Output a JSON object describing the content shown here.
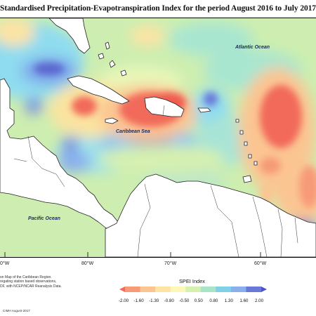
{
  "title": "Standardised Precipitation-Evapotranspiration Index for the period August 2016 to July 2017",
  "map_labels": {
    "atlantic": "Atlantic Ocean",
    "caribbean": "Caribbean Sea",
    "pacific": "Pacific Ocean"
  },
  "longitudes": [
    "0°W",
    "80°W",
    "70°W",
    "60°W"
  ],
  "credits": [
    "on Map of the Caribbean Region.",
    "regating station based observations,",
    "DF, with NCEP/NCAR Reanalysis Data."
  ],
  "copyright": "CIMH August-2017",
  "legend": {
    "title": "SPEI Index",
    "ticks": [
      "-2.00",
      "-1.60",
      "-1.30",
      "-0.80",
      "-0.50",
      "0.50",
      "0.80",
      "1.30",
      "1.60",
      "2.00"
    ],
    "colors": [
      "#f26a5a",
      "#f79a77",
      "#fbc592",
      "#fde3a4",
      "#fdf7b8",
      "#d6f0b0",
      "#a9e3c8",
      "#7fd0e8",
      "#8ab0ec",
      "#6a78d8",
      "#4a55c6"
    ]
  },
  "colors": {
    "land": "#ffffff",
    "coast": "#222222",
    "field_base": "#cdeeb0"
  }
}
